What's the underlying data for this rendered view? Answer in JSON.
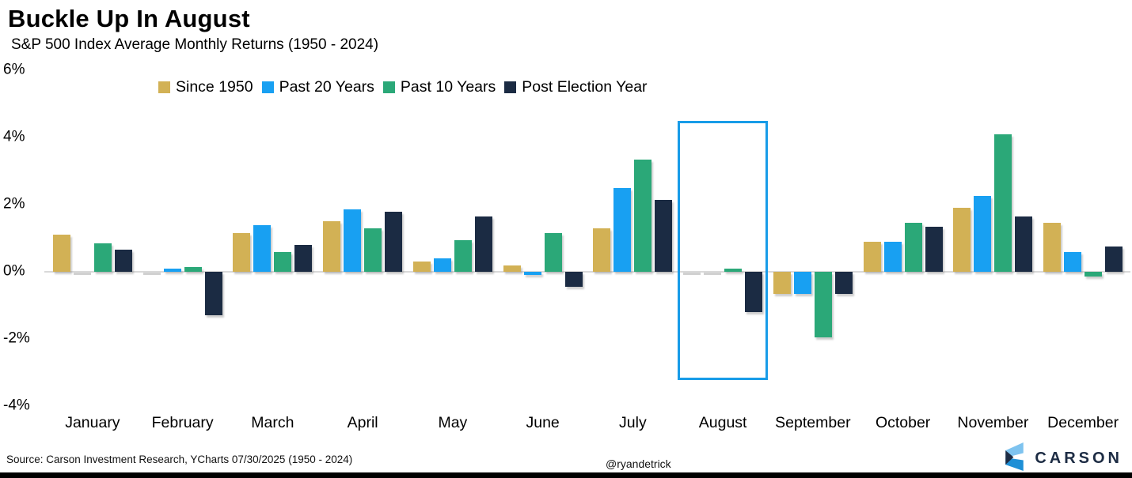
{
  "header": {
    "title": "Buckle Up In August",
    "subtitle": "S&P 500 Index Average Monthly Returns (1950 - 2024)"
  },
  "chart_data": {
    "type": "bar",
    "title": "Buckle Up In August",
    "subtitle": "S&P 500 Index Average Monthly Returns (1950 - 2024)",
    "categories": [
      "January",
      "February",
      "March",
      "April",
      "May",
      "June",
      "July",
      "August",
      "September",
      "October",
      "November",
      "December"
    ],
    "series": [
      {
        "name": "Since 1950",
        "color": "#D2B155",
        "values": [
          1.1,
          0.0,
          1.15,
          1.5,
          0.3,
          0.2,
          1.3,
          0.0,
          -0.65,
          0.9,
          1.9,
          1.45
        ]
      },
      {
        "name": "Past 20 Years",
        "color": "#18A0F2",
        "values": [
          0.0,
          0.1,
          1.4,
          1.85,
          0.4,
          -0.1,
          2.5,
          0.0,
          -0.65,
          0.9,
          2.25,
          0.6
        ]
      },
      {
        "name": "Past 10 Years",
        "color": "#2BA878",
        "values": [
          0.85,
          0.15,
          0.6,
          1.3,
          0.95,
          1.15,
          3.35,
          0.1,
          -1.95,
          1.45,
          4.1,
          -0.15
        ]
      },
      {
        "name": "Post Election Year",
        "color": "#1B2B43",
        "values": [
          0.65,
          -1.3,
          0.8,
          1.8,
          1.65,
          -0.45,
          2.15,
          -1.2,
          -0.65,
          1.35,
          1.65,
          0.75
        ]
      }
    ],
    "ylabel": "",
    "xlabel": "",
    "ylim": [
      -4,
      6
    ],
    "yticks": [
      "6%",
      "4%",
      "2%",
      "0%",
      "-2%",
      "-4%"
    ],
    "ytick_values": [
      6,
      4,
      2,
      0,
      -2,
      -4
    ],
    "grid": false,
    "legend_position": "top",
    "highlight": {
      "category": "August",
      "color": "#189CE8"
    }
  },
  "footer": {
    "source": "Source: Carson Investment Research, YCharts 07/30/2025 (1950 - 2024)",
    "handle": "@ryandetrick",
    "brand": "CARSON"
  },
  "colors": {
    "zero_line": "#D9D9D9",
    "highlight_box": "#189CE8",
    "brand_navy": "#1D2C44",
    "brand_blue_light": "#7EC3EF",
    "brand_blue_mid": "#1E8FD6"
  }
}
